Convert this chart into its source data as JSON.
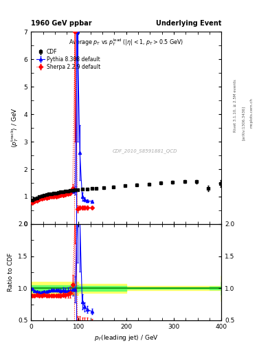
{
  "title_left": "1960 GeV ppbar",
  "title_right": "Underlying Event",
  "plot_title": "Average $p_T$ vs $p_T^{\\rm lead}$ ($|\\eta| < 1$, $p_T > 0.5$ GeV)",
  "ylabel_main": "$\\langle p_T^{\\rm track} \\rangle$ / GeV",
  "ylabel_ratio": "Ratio to CDF",
  "xlabel": "$p_T$(leading jet) / GeV",
  "watermark": "CDF_2010_S8591881_QCD",
  "right_label1": "Rivet 3.1.10, ≥ 2.5M events",
  "right_label2": "[arXiv:1306.3436]",
  "right_label3": "mcplots.cern.ch",
  "cdf_x": [
    2.5,
    7.5,
    12.5,
    17.5,
    22.5,
    27.5,
    32.5,
    37.5,
    42.5,
    47.5,
    52.5,
    57.5,
    62.5,
    67.5,
    72.5,
    77.5,
    82.5,
    87.5,
    92.5,
    97.5,
    107.5,
    117.5,
    127.5,
    137.5,
    152.5,
    172.5,
    197.5,
    222.5,
    247.5,
    272.5,
    297.5,
    322.5,
    347.5,
    372.5,
    397.5
  ],
  "cdf_y": [
    0.88,
    0.92,
    0.96,
    1.0,
    1.03,
    1.05,
    1.08,
    1.1,
    1.11,
    1.12,
    1.13,
    1.15,
    1.17,
    1.18,
    1.2,
    1.21,
    1.22,
    1.23,
    1.24,
    1.25,
    1.27,
    1.28,
    1.29,
    1.3,
    1.32,
    1.36,
    1.4,
    1.43,
    1.46,
    1.49,
    1.52,
    1.55,
    1.54,
    1.3,
    1.47
  ],
  "cdf_yerr": [
    0.02,
    0.02,
    0.02,
    0.02,
    0.02,
    0.02,
    0.02,
    0.02,
    0.02,
    0.02,
    0.02,
    0.02,
    0.02,
    0.02,
    0.02,
    0.02,
    0.02,
    0.02,
    0.02,
    0.02,
    0.02,
    0.02,
    0.02,
    0.02,
    0.02,
    0.03,
    0.03,
    0.04,
    0.04,
    0.05,
    0.05,
    0.06,
    0.07,
    0.09,
    0.12
  ],
  "pythia_x": [
    2.5,
    7.5,
    12.5,
    17.5,
    22.5,
    27.5,
    32.5,
    37.5,
    42.5,
    47.5,
    52.5,
    57.5,
    62.5,
    67.5,
    72.5,
    77.5,
    82.5,
    87.5,
    92.5,
    97.5,
    102.5,
    107.5,
    112.5,
    117.5,
    127.5
  ],
  "pythia_y": [
    0.87,
    0.88,
    0.91,
    0.94,
    0.97,
    1.0,
    1.03,
    1.06,
    1.08,
    1.09,
    1.1,
    1.11,
    1.12,
    1.14,
    1.15,
    1.16,
    1.17,
    1.2,
    1.22,
    7.0,
    2.6,
    1.0,
    0.9,
    0.85,
    0.83
  ],
  "pythia_yerr": [
    0.01,
    0.01,
    0.01,
    0.01,
    0.01,
    0.01,
    0.01,
    0.01,
    0.02,
    0.02,
    0.02,
    0.02,
    0.03,
    0.04,
    0.04,
    0.05,
    0.06,
    0.07,
    0.15,
    4.0,
    1.0,
    0.15,
    0.08,
    0.06,
    0.04
  ],
  "pythia_vline_x": 95.0,
  "sherpa_x": [
    2.5,
    7.5,
    12.5,
    17.5,
    22.5,
    27.5,
    32.5,
    37.5,
    42.5,
    47.5,
    52.5,
    57.5,
    62.5,
    67.5,
    72.5,
    77.5,
    82.5,
    87.5,
    92.5,
    97.5,
    102.5,
    107.5,
    112.5,
    117.5,
    127.5
  ],
  "sherpa_y": [
    0.78,
    0.82,
    0.86,
    0.89,
    0.92,
    0.94,
    0.96,
    0.98,
    0.99,
    1.0,
    1.01,
    1.02,
    1.04,
    1.06,
    1.08,
    1.1,
    1.13,
    1.3,
    7.0,
    0.55,
    0.6,
    0.6,
    0.6,
    0.6,
    0.6
  ],
  "sherpa_yerr": [
    0.01,
    0.01,
    0.01,
    0.01,
    0.01,
    0.01,
    0.01,
    0.01,
    0.02,
    0.02,
    0.02,
    0.03,
    0.04,
    0.04,
    0.05,
    0.06,
    0.08,
    0.15,
    4.0,
    0.12,
    0.08,
    0.07,
    0.07,
    0.07,
    0.05
  ],
  "sherpa_vline_x": 90.0,
  "ratio_pythia_x": [
    2.5,
    7.5,
    12.5,
    17.5,
    22.5,
    27.5,
    32.5,
    37.5,
    42.5,
    47.5,
    52.5,
    57.5,
    62.5,
    67.5,
    72.5,
    77.5,
    82.5,
    87.5,
    92.5,
    97.5,
    102.5,
    107.5,
    112.5,
    117.5,
    127.5
  ],
  "ratio_pythia_y": [
    0.99,
    0.96,
    0.95,
    0.94,
    0.94,
    0.95,
    0.95,
    0.96,
    0.97,
    0.97,
    0.97,
    0.97,
    0.96,
    0.97,
    0.96,
    0.96,
    0.96,
    0.98,
    0.98,
    2.2,
    2.06,
    0.79,
    0.71,
    0.67,
    0.64
  ],
  "ratio_pythia_yerr": [
    0.01,
    0.01,
    0.01,
    0.01,
    0.01,
    0.01,
    0.01,
    0.01,
    0.02,
    0.02,
    0.02,
    0.02,
    0.03,
    0.04,
    0.04,
    0.05,
    0.06,
    0.1,
    0.2,
    0.8,
    0.8,
    0.12,
    0.07,
    0.05,
    0.04
  ],
  "ratio_sherpa_x": [
    2.5,
    7.5,
    12.5,
    17.5,
    22.5,
    27.5,
    32.5,
    37.5,
    42.5,
    47.5,
    52.5,
    57.5,
    62.5,
    67.5,
    72.5,
    77.5,
    82.5,
    87.5,
    92.5,
    97.5,
    102.5,
    107.5,
    112.5,
    117.5,
    127.5
  ],
  "ratio_sherpa_y": [
    0.89,
    0.89,
    0.9,
    0.89,
    0.89,
    0.9,
    0.89,
    0.89,
    0.89,
    0.89,
    0.89,
    0.89,
    0.89,
    0.9,
    0.9,
    0.91,
    0.93,
    1.06,
    2.2,
    0.44,
    0.48,
    0.47,
    0.47,
    0.47,
    0.47
  ],
  "ratio_sherpa_yerr": [
    0.01,
    0.01,
    0.01,
    0.01,
    0.01,
    0.01,
    0.01,
    0.01,
    0.02,
    0.02,
    0.02,
    0.03,
    0.04,
    0.04,
    0.05,
    0.06,
    0.08,
    0.15,
    0.5,
    0.12,
    0.08,
    0.07,
    0.07,
    0.07,
    0.05
  ],
  "band_x": [
    0,
    100,
    200,
    300,
    375,
    400
  ],
  "band_yellow_low": [
    0.9,
    0.93,
    0.97,
    0.97,
    0.97,
    0.8
  ],
  "band_yellow_high": [
    1.1,
    1.07,
    1.03,
    1.03,
    1.03,
    1.2
  ],
  "band_green_low": [
    0.95,
    0.96,
    0.99,
    0.99,
    0.98,
    0.9
  ],
  "band_green_high": [
    1.05,
    1.04,
    1.01,
    1.01,
    1.02,
    1.1
  ],
  "xlim": [
    0,
    400
  ],
  "ylim_main": [
    0,
    7
  ],
  "ylim_ratio": [
    0.5,
    2.0
  ],
  "cdf_color": "#000000",
  "pythia_color": "#0000ff",
  "sherpa_color": "#ff0000",
  "band_yellow": "#ffff66",
  "band_green": "#66ff66",
  "line_color": "#008800"
}
